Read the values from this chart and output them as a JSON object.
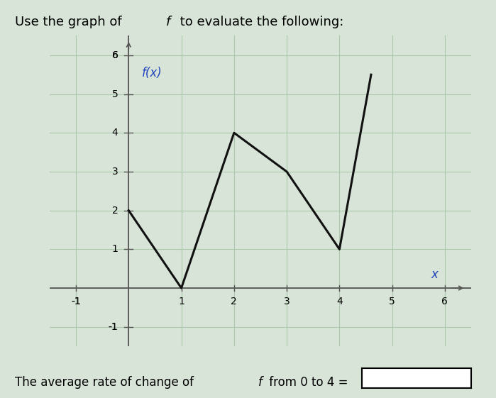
{
  "graph_points": [
    [
      0,
      2
    ],
    [
      1,
      0
    ],
    [
      2,
      4
    ],
    [
      3,
      3
    ],
    [
      4,
      1
    ],
    [
      4.6,
      5.5
    ]
  ],
  "xlim": [
    -1.5,
    6.5
  ],
  "ylim": [
    -1.5,
    6.5
  ],
  "xticks": [
    -1,
    1,
    2,
    3,
    4,
    5,
    6
  ],
  "yticks": [
    -1,
    1,
    2,
    3,
    4,
    5,
    6
  ],
  "grid_xticks": [
    -1,
    0,
    1,
    2,
    3,
    4,
    5,
    6
  ],
  "grid_yticks": [
    -1,
    0,
    1,
    2,
    3,
    4,
    5,
    6
  ],
  "line_color": "#111111",
  "background_color": "#d8e4d8",
  "text_color": "#000000",
  "axis_label_color": "#2244bb",
  "fx_label_color": "#2244bb",
  "grid_color": "#aac8aa",
  "axis_color": "#555555"
}
